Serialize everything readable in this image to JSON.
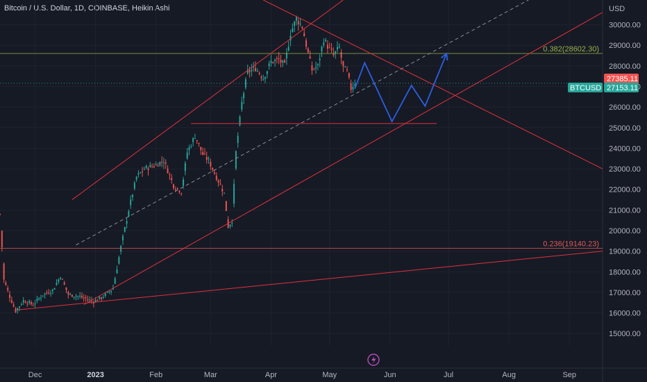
{
  "header": {
    "title": "Bitcoin / U.S. Dollar, 1D, COINBASE, Heikin Ashi"
  },
  "axis": {
    "unit_label": "USD",
    "y_ticks": [
      "30000.00",
      "29000.00",
      "28000.00",
      "27000.00",
      "26000.00",
      "25000.00",
      "24000.00",
      "23000.00",
      "22000.00",
      "21000.00",
      "20000.00",
      "19000.00",
      "18000.00",
      "17000.00",
      "16000.00",
      "15000.00"
    ],
    "x_ticks": [
      "Dec",
      "2023",
      "Feb",
      "Mar",
      "Apr",
      "May",
      "Jun",
      "Jul",
      "Aug",
      "Sep"
    ]
  },
  "badges": {
    "last_price": "27385.11",
    "symbol": "BTCUSD",
    "price": "27153.11"
  },
  "fib_levels": [
    {
      "label": "0.382(28602.30)",
      "value": 28602.3,
      "color": "#9bb34a"
    },
    {
      "label": "0.236(19140.23)",
      "value": 19140.23,
      "color": "#e05a5a"
    }
  ],
  "colors": {
    "up": "#26a69a",
    "down": "#ef5350",
    "background": "#161a25",
    "trend": "#e0323c",
    "projection": "#2d5fe0",
    "midline": "#8a8e99"
  },
  "chart_data": {
    "type": "candlestick",
    "title": "Bitcoin / U.S. Dollar, 1D, COINBASE, Heikin Ashi",
    "ylabel": "USD",
    "ylim": [
      14400,
      31200
    ],
    "x_range": [
      "2022-11-13",
      "2023-09-18"
    ],
    "x_ticks": [
      "Dec",
      "2023",
      "Feb",
      "Mar",
      "Apr",
      "May",
      "Jun",
      "Jul",
      "Aug",
      "Sep"
    ],
    "last_price": 27385.11,
    "current_price": 27153.11,
    "price_path": [
      [
        "2022-11-13",
        20800
      ],
      [
        "2022-11-15",
        17600
      ],
      [
        "2022-11-18",
        16800
      ],
      [
        "2022-11-21",
        16100
      ],
      [
        "2022-11-25",
        16600
      ],
      [
        "2022-11-30",
        16400
      ],
      [
        "2022-12-05",
        16900
      ],
      [
        "2022-12-10",
        17100
      ],
      [
        "2022-12-14",
        17800
      ],
      [
        "2022-12-18",
        16900
      ],
      [
        "2022-12-24",
        16800
      ],
      [
        "2022-12-31",
        16550
      ],
      [
        "2023-01-05",
        16800
      ],
      [
        "2023-01-10",
        17200
      ],
      [
        "2023-01-14",
        19200
      ],
      [
        "2023-01-18",
        21000
      ],
      [
        "2023-01-22",
        22600
      ],
      [
        "2023-01-26",
        23000
      ],
      [
        "2023-02-01",
        23200
      ],
      [
        "2023-02-05",
        23400
      ],
      [
        "2023-02-10",
        22200
      ],
      [
        "2023-02-14",
        21900
      ],
      [
        "2023-02-17",
        23800
      ],
      [
        "2023-02-21",
        24600
      ],
      [
        "2023-02-25",
        23700
      ],
      [
        "2023-02-28",
        23400
      ],
      [
        "2023-03-04",
        22600
      ],
      [
        "2023-03-08",
        21800
      ],
      [
        "2023-03-10",
        20200
      ],
      [
        "2023-03-12",
        20500
      ],
      [
        "2023-03-14",
        23800
      ],
      [
        "2023-03-17",
        26200
      ],
      [
        "2023-03-20",
        27700
      ],
      [
        "2023-03-24",
        27900
      ],
      [
        "2023-03-28",
        27400
      ],
      [
        "2023-04-01",
        28200
      ],
      [
        "2023-04-05",
        28300
      ],
      [
        "2023-04-08",
        28000
      ],
      [
        "2023-04-11",
        29600
      ],
      [
        "2023-04-14",
        30300
      ],
      [
        "2023-04-17",
        29900
      ],
      [
        "2023-04-20",
        28600
      ],
      [
        "2023-04-22",
        27800
      ],
      [
        "2023-04-25",
        28000
      ],
      [
        "2023-04-28",
        29300
      ],
      [
        "2023-05-01",
        28800
      ],
      [
        "2023-05-03",
        28500
      ],
      [
        "2023-05-06",
        28900
      ],
      [
        "2023-05-08",
        27900
      ],
      [
        "2023-05-10",
        27700
      ],
      [
        "2023-05-12",
        26900
      ],
      [
        "2023-05-14",
        27200
      ]
    ],
    "fibonacci": [
      {
        "ratio": 0.382,
        "price": 28602.3,
        "label": "0.382(28602.30)"
      },
      {
        "ratio": 0.236,
        "price": 19140.23,
        "label": "0.236(19140.23)"
      }
    ],
    "trendlines": [
      {
        "name": "upper-channel",
        "from": [
          "2022-12-20",
          21500
        ],
        "to": [
          "2023-05-08",
          31200
        ]
      },
      {
        "name": "channel-support",
        "from": [
          "2022-12-26",
          16400
        ],
        "to": [
          "2023-09-18",
          30600
        ]
      },
      {
        "name": "long-term-support",
        "from": [
          "2022-11-22",
          16150
        ],
        "to": [
          "2023-09-18",
          19000
        ]
      },
      {
        "name": "resistance-descending",
        "from": [
          "2023-03-28",
          31200
        ],
        "to": [
          "2023-09-18",
          23000
        ]
      },
      {
        "name": "horizontal-support",
        "from": [
          "2023-02-19",
          25200
        ],
        "to": [
          "2023-06-25",
          25200
        ]
      }
    ],
    "midline": {
      "from": [
        "2022-12-22",
        19300
      ],
      "to": [
        "2023-08-11",
        31200
      ]
    },
    "projection": [
      [
        "2023-05-14",
        26900
      ],
      [
        "2023-05-19",
        28150
      ],
      [
        "2023-06-02",
        25300
      ],
      [
        "2023-06-12",
        27050
      ],
      [
        "2023-06-19",
        26050
      ],
      [
        "2023-06-30",
        28600
      ]
    ]
  }
}
